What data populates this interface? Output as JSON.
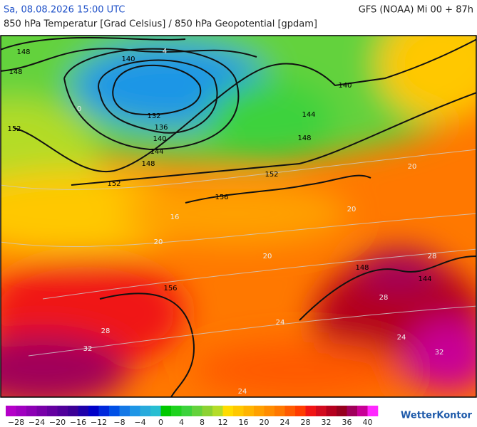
{
  "header": {
    "valid_time": "Sa, 08.08.2026 15:00 UTC",
    "model_run": "GFS (NOAA) Mi 00 + 87h",
    "subtitle": "850 hPa Temperatur [Grad Celsius] / 850 hPa Geopotential [gpdam]"
  },
  "map": {
    "geopotential_labels": [
      148,
      148,
      140,
      132,
      136,
      140,
      144,
      148,
      152,
      152,
      152,
      156,
      148,
      144,
      140,
      148,
      144,
      156
    ],
    "temperature_labels": [
      4,
      0,
      20,
      20,
      20,
      24,
      28,
      28,
      24,
      32,
      28,
      32,
      24,
      16,
      20
    ]
  },
  "colorbar": {
    "range": [
      -30,
      42
    ],
    "ticks": [
      {
        "value": -28,
        "label": "−28"
      },
      {
        "value": -24,
        "label": "−24"
      },
      {
        "value": -20,
        "label": "−20"
      },
      {
        "value": -16,
        "label": "−16"
      },
      {
        "value": -12,
        "label": "−12"
      },
      {
        "value": -8,
        "label": "−8"
      },
      {
        "value": -4,
        "label": "−4"
      },
      0,
      4,
      8,
      12,
      16,
      20,
      24,
      28,
      32,
      36,
      40
    ],
    "colors": [
      "#b400c8",
      "#a000c0",
      "#8c00b4",
      "#7800a8",
      "#6400a0",
      "#50009a",
      "#3c0096",
      "#1e00aa",
      "#0000c8",
      "#0028dc",
      "#0050e6",
      "#1478e6",
      "#1e96e6",
      "#28aadc",
      "#28bed2",
      "#00c800",
      "#1ed21e",
      "#3cd23c",
      "#64d23c",
      "#8cd232",
      "#b4dc28",
      "#ffdc00",
      "#ffc800",
      "#ffb400",
      "#ffa000",
      "#ff8c00",
      "#ff7800",
      "#ff5a00",
      "#ff3c00",
      "#f01414",
      "#d20a1e",
      "#b4001e",
      "#96001e",
      "#a0005a",
      "#c80096",
      "#ff28ff"
    ]
  },
  "logo": "WetterKontor"
}
